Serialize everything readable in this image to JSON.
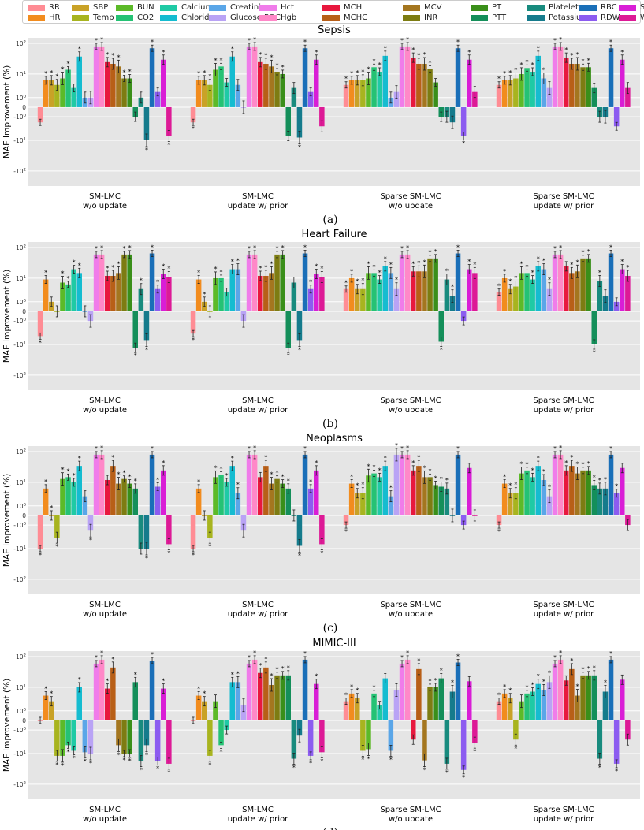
{
  "legend": [
    {
      "name": "RR",
      "color": "#ff8c94"
    },
    {
      "name": "HR",
      "color": "#f28c1e"
    },
    {
      "name": "SBP",
      "color": "#c9a227"
    },
    {
      "name": "Temp",
      "color": "#a8b41f"
    },
    {
      "name": "BUN",
      "color": "#5cba28"
    },
    {
      "name": "CO2",
      "color": "#25c274"
    },
    {
      "name": "Calcium",
      "color": "#1fcaa5"
    },
    {
      "name": "Chloride",
      "color": "#15bcd0"
    },
    {
      "name": "Creatinine",
      "color": "#5aa6e8"
    },
    {
      "name": "Glucose POC",
      "color": "#b9a3f5"
    },
    {
      "name": "Hct",
      "color": "#f07cea"
    },
    {
      "name": "Hgb",
      "color": "#ff88c8"
    },
    {
      "name": "MCH",
      "color": "#e8183e"
    },
    {
      "name": "MCHC",
      "color": "#b85f17"
    },
    {
      "name": "MCV",
      "color": "#a4761f"
    },
    {
      "name": "INR",
      "color": "#7d7c12"
    },
    {
      "name": "PT",
      "color": "#3a8f1a"
    },
    {
      "name": "PTT",
      "color": "#148f5a"
    },
    {
      "name": "Platelet",
      "color": "#188b7e"
    },
    {
      "name": "Potassium",
      "color": "#157b8c"
    },
    {
      "name": "RBC",
      "color": "#1a6fb8"
    },
    {
      "name": "RDW",
      "color": "#8c5cf0"
    },
    {
      "name": "Sodium",
      "color": "#d91ed6"
    },
    {
      "name": "WBC",
      "color": "#dd1a96"
    }
  ],
  "chart_data": [
    {
      "type": "bar",
      "title": "Sepsis",
      "caption": "(a)",
      "ylabel": "MAE Improvement (%)",
      "yscale": "symlog",
      "ylim": [
        -300,
        150
      ],
      "yticks": [
        "10^2",
        "10^1",
        "10^0",
        "0",
        "-10^0",
        "-10^1",
        "-10^2"
      ],
      "groups": [
        {
          "line1": "SM-LMC",
          "line2": "w/o update",
          "values": [
            -2,
            6,
            6,
            4,
            7,
            14,
            3,
            38,
            1,
            1,
            80,
            80,
            25,
            22,
            18,
            7,
            7,
            -1,
            1,
            -10,
            70,
            2,
            30,
            -7
          ],
          "sig": [
            0,
            1,
            1,
            1,
            1,
            1,
            0,
            1,
            0,
            0,
            1,
            1,
            1,
            1,
            1,
            1,
            1,
            0,
            0,
            1,
            1,
            0,
            1,
            1
          ]
        },
        {
          "line1": "SM-LMC",
          "line2": "update w/ prior",
          "values": [
            -2,
            6,
            6,
            4,
            14,
            18,
            5,
            38,
            4,
            0,
            80,
            80,
            25,
            22,
            18,
            12,
            10,
            -7,
            3,
            -8,
            70,
            2,
            30,
            -3
          ],
          "sig": [
            1,
            1,
            1,
            1,
            1,
            1,
            0,
            1,
            0,
            0,
            1,
            1,
            1,
            1,
            1,
            1,
            1,
            0,
            0,
            1,
            1,
            0,
            1,
            0
          ]
        },
        {
          "line1": "Sparse SM-LMC",
          "line2": "w/o update",
          "values": [
            4,
            6,
            6,
            6,
            7,
            17,
            12,
            40,
            1,
            2,
            80,
            80,
            35,
            22,
            22,
            15,
            5,
            -1,
            -1,
            -2,
            70,
            -7,
            30,
            2
          ],
          "sig": [
            1,
            1,
            1,
            1,
            1,
            1,
            1,
            1,
            0,
            0,
            1,
            1,
            1,
            1,
            1,
            1,
            0,
            0,
            0,
            0,
            1,
            1,
            1,
            0
          ]
        },
        {
          "line1": "Sparse SM-LMC",
          "line2": "update w/ prior",
          "values": [
            4,
            6,
            6,
            7,
            10,
            16,
            12,
            40,
            7,
            3,
            80,
            80,
            35,
            22,
            22,
            17,
            17,
            3,
            -1,
            -1,
            70,
            -3,
            30,
            3
          ],
          "sig": [
            1,
            1,
            1,
            1,
            1,
            1,
            1,
            1,
            1,
            0,
            1,
            1,
            1,
            1,
            1,
            1,
            1,
            0,
            0,
            0,
            1,
            0,
            1,
            0
          ]
        }
      ]
    },
    {
      "type": "bar",
      "title": "Heart Failure",
      "caption": "(b)",
      "ylabel": "MAE Improvement (%)",
      "yscale": "symlog",
      "ylim": [
        -300,
        150
      ],
      "yticks": [
        "10^2",
        "10^1",
        "10^0",
        "0",
        "-10^0",
        "-10^1",
        "-10^2"
      ],
      "groups": [
        {
          "line1": "SM-LMC",
          "line2": "w/o update",
          "values": [
            -5,
            9,
            1,
            0,
            7,
            6,
            20,
            15,
            0,
            -1,
            60,
            60,
            12,
            12,
            15,
            60,
            60,
            -13,
            4,
            -7,
            65,
            4,
            14,
            11
          ],
          "sig": [
            1,
            1,
            0,
            0,
            1,
            1,
            1,
            1,
            0,
            0,
            1,
            1,
            1,
            1,
            1,
            1,
            1,
            1,
            1,
            1,
            1,
            1,
            1,
            1
          ]
        },
        {
          "line1": "SM-LMC",
          "line2": "update w/ prior",
          "values": [
            -4,
            9,
            1,
            0,
            10,
            10,
            3,
            20,
            20,
            -1,
            60,
            60,
            12,
            12,
            15,
            60,
            60,
            -13,
            7,
            -7,
            65,
            4,
            14,
            11
          ],
          "sig": [
            1,
            1,
            1,
            0,
            1,
            1,
            0,
            1,
            1,
            0,
            1,
            1,
            1,
            1,
            1,
            1,
            1,
            1,
            0,
            1,
            1,
            1,
            1,
            1
          ]
        },
        {
          "line1": "Sparse SM-LMC",
          "line2": "w/o update",
          "values": [
            4,
            10,
            4,
            4,
            15,
            15,
            9,
            25,
            15,
            4,
            60,
            60,
            17,
            17,
            17,
            45,
            45,
            -8,
            9,
            2,
            65,
            -1,
            20,
            15
          ],
          "sig": [
            1,
            1,
            1,
            1,
            1,
            1,
            1,
            1,
            1,
            1,
            1,
            1,
            1,
            1,
            1,
            1,
            1,
            1,
            1,
            1,
            1,
            0,
            1,
            1
          ]
        },
        {
          "line1": "Sparse SM-LMC",
          "line2": "update w/ prior",
          "values": [
            3,
            10,
            4,
            5,
            15,
            15,
            9,
            25,
            20,
            4,
            60,
            60,
            25,
            15,
            17,
            45,
            45,
            -10,
            8,
            2,
            65,
            1,
            20,
            12
          ],
          "sig": [
            1,
            1,
            1,
            1,
            1,
            1,
            1,
            1,
            1,
            1,
            1,
            1,
            0,
            1,
            1,
            1,
            1,
            1,
            1,
            0,
            1,
            0,
            1,
            1
          ]
        }
      ]
    },
    {
      "type": "bar",
      "title": "Neoplasms",
      "caption": "(c)",
      "ylabel": "MAE Improvement (%)",
      "yscale": "symlog",
      "ylim": [
        -300,
        150
      ],
      "yticks": [
        "10^2",
        "10^1",
        "10^0",
        "0",
        "-10^0",
        "-10^1",
        "-10^2"
      ],
      "groups": [
        {
          "line1": "SM-LMC",
          "line2": "w/o update",
          "values": [
            -10,
            6,
            0,
            -4,
            13,
            15,
            10,
            35,
            3,
            -2,
            80,
            80,
            12,
            35,
            9,
            13,
            9,
            6,
            -10,
            -10,
            80,
            7,
            25,
            -7
          ],
          "sig": [
            1,
            1,
            1,
            1,
            1,
            1,
            1,
            1,
            0,
            1,
            1,
            1,
            0,
            1,
            1,
            1,
            1,
            1,
            0,
            1,
            1,
            1,
            1,
            1
          ]
        },
        {
          "line1": "SM-LMC",
          "line2": "update w/ prior",
          "values": [
            -10,
            6,
            0,
            -4,
            15,
            18,
            10,
            35,
            4,
            -2,
            80,
            80,
            15,
            35,
            9,
            13,
            9,
            6,
            0,
            -8,
            80,
            6,
            25,
            -7
          ],
          "sig": [
            1,
            1,
            0,
            1,
            1,
            1,
            1,
            1,
            1,
            0,
            1,
            1,
            0,
            1,
            1,
            1,
            1,
            1,
            0,
            1,
            1,
            1,
            1,
            1
          ]
        },
        {
          "line1": "Sparse SM-LMC",
          "line2": "w/o update",
          "values": [
            -1,
            9,
            4,
            4,
            17,
            20,
            15,
            35,
            3,
            80,
            80,
            80,
            25,
            35,
            15,
            15,
            8,
            7,
            6,
            0,
            80,
            -1,
            30,
            0
          ],
          "sig": [
            1,
            1,
            1,
            1,
            1,
            1,
            1,
            1,
            1,
            1,
            1,
            1,
            1,
            1,
            1,
            1,
            1,
            1,
            1,
            0,
            1,
            0,
            0,
            0
          ]
        },
        {
          "line1": "Sparse SM-LMC",
          "line2": "update w/ prior",
          "values": [
            -1,
            9,
            4,
            4,
            20,
            25,
            15,
            35,
            12,
            3,
            80,
            80,
            25,
            35,
            20,
            25,
            25,
            8,
            6,
            6,
            80,
            4,
            30,
            -1
          ],
          "sig": [
            1,
            1,
            1,
            1,
            1,
            1,
            1,
            1,
            1,
            1,
            1,
            1,
            1,
            1,
            1,
            1,
            1,
            1,
            1,
            1,
            1,
            1,
            0,
            0
          ]
        }
      ]
    },
    {
      "type": "bar",
      "title": "MIMIC-III",
      "caption": "(d)",
      "ylabel": "MAE Improvement (%)",
      "yscale": "symlog",
      "ylim": [
        -300,
        150
      ],
      "yticks": [
        "10^2",
        "10^1",
        "10^0",
        "0",
        "-10^0",
        "-10^1",
        "-10^2"
      ],
      "groups": [
        {
          "line1": "SM-LMC",
          "line2": "w/o update",
          "values": [
            0,
            5,
            3,
            -12,
            -12,
            -5,
            -8,
            10,
            -9,
            -10,
            60,
            80,
            9,
            45,
            -5,
            -10,
            -10,
            15,
            -18,
            -5,
            75,
            -18,
            9,
            -22
          ],
          "sig": [
            0,
            1,
            1,
            1,
            1,
            1,
            1,
            1,
            1,
            1,
            1,
            1,
            1,
            1,
            1,
            1,
            1,
            1,
            1,
            1,
            1,
            1,
            1,
            1
          ]
        },
        {
          "line1": "SM-LMC",
          "line2": "update w/ prior",
          "values": [
            0,
            5,
            3,
            -12,
            3,
            -5,
            -1,
            15,
            15,
            2,
            60,
            80,
            30,
            45,
            12,
            25,
            25,
            25,
            -15,
            -2,
            80,
            -12,
            13,
            -9
          ],
          "sig": [
            0,
            1,
            1,
            1,
            0,
            1,
            0,
            1,
            1,
            0,
            1,
            1,
            1,
            1,
            1,
            1,
            1,
            1,
            1,
            0,
            1,
            1,
            1,
            1
          ]
        },
        {
          "line1": "Sparse SM-LMC",
          "line2": "w/o update",
          "values": [
            3,
            6,
            4,
            -8,
            -7,
            6,
            2,
            20,
            -8,
            8,
            60,
            80,
            -3,
            40,
            -17,
            10,
            10,
            20,
            -22,
            7,
            65,
            -35,
            16,
            -4
          ],
          "sig": [
            1,
            1,
            1,
            1,
            1,
            1,
            0,
            0,
            1,
            0,
            1,
            1,
            0,
            1,
            1,
            1,
            1,
            1,
            1,
            1,
            1,
            1,
            0,
            1
          ]
        },
        {
          "line1": "Sparse SM-LMC",
          "line2": "update w/ prior",
          "values": [
            3,
            6,
            4,
            -3,
            3,
            6,
            7,
            13,
            8,
            15,
            60,
            80,
            17,
            40,
            5,
            25,
            25,
            25,
            -15,
            7,
            80,
            -22,
            18,
            -3
          ],
          "sig": [
            1,
            1,
            1,
            1,
            0,
            1,
            1,
            1,
            1,
            1,
            1,
            1,
            0,
            1,
            1,
            1,
            1,
            1,
            1,
            1,
            1,
            1,
            0,
            0
          ]
        }
      ]
    }
  ]
}
